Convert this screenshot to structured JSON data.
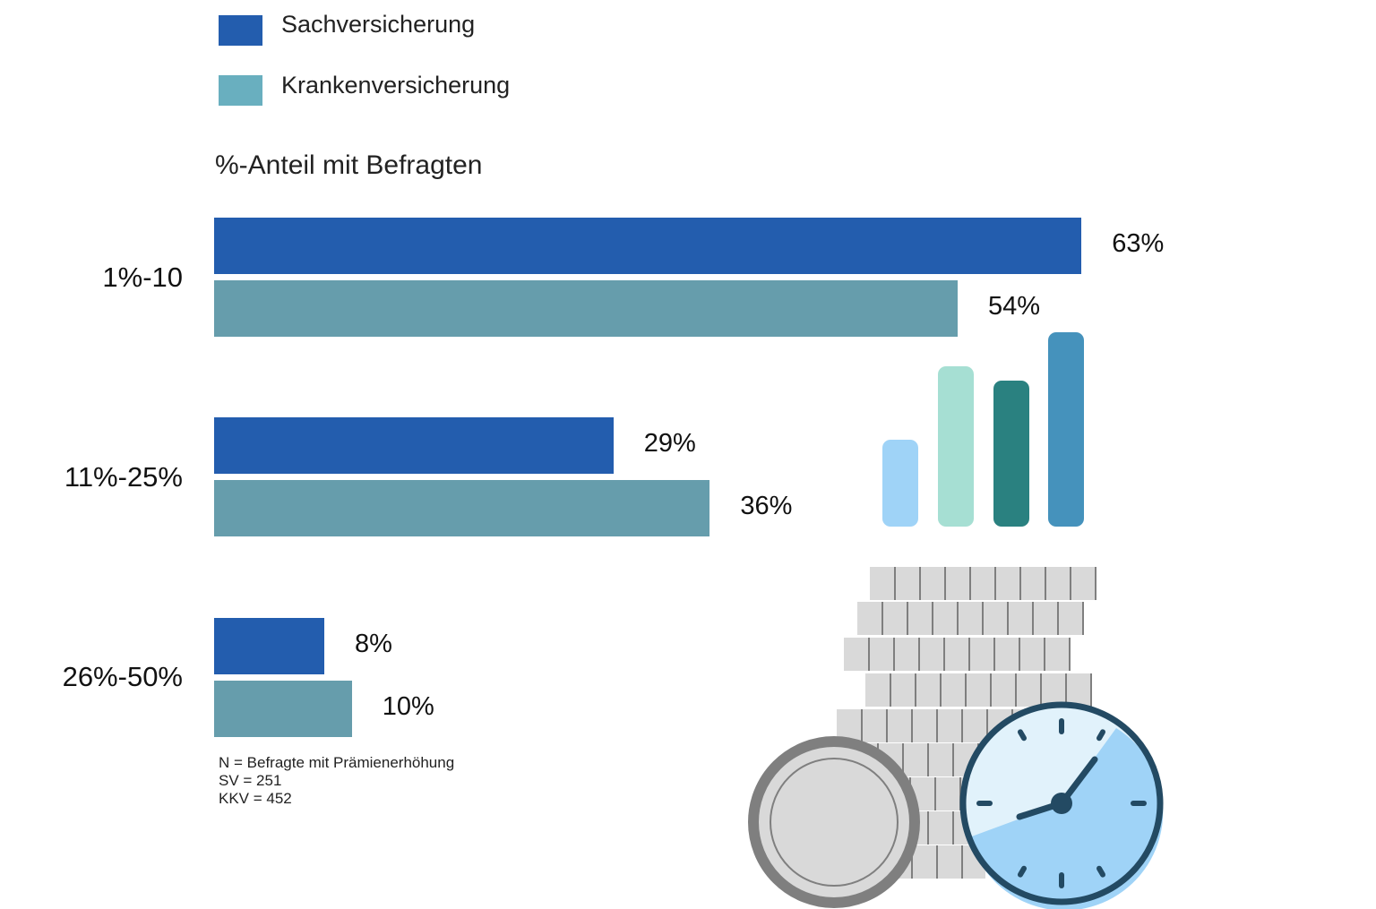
{
  "colors": {
    "sach": "#235DAE",
    "kranken": "#669DAC",
    "legend_kranken": "#69AFBF"
  },
  "legend": {
    "sach_label": "Sachversicherung",
    "kranken_label": "Krankenversicherung"
  },
  "subtitle": "%-Anteil mit Befragten",
  "chart_data": {
    "type": "bar",
    "orientation": "horizontal",
    "categories": [
      "1%-10",
      "11%-25%",
      "26%-50%"
    ],
    "series": [
      {
        "name": "Sachversicherung",
        "values": [
          63,
          29,
          8
        ],
        "labels": [
          "63%",
          "29%",
          "8%"
        ]
      },
      {
        "name": "Krankenversicherung",
        "values": [
          54,
          36,
          10
        ],
        "labels": [
          "54%",
          "36%",
          "10%"
        ]
      }
    ],
    "xlim": [
      0,
      100
    ],
    "grid": false,
    "legend_position": "top-left"
  },
  "note": {
    "line1": "N = Befragte mit Prämienerhöhung",
    "line2": "SV = 251",
    "line3": "KKV = 452"
  },
  "decoration": {
    "mini_bar_icon": "bar-chart-icon",
    "coins_icon": "coin-stack-icon",
    "clock_icon": "clock-icon"
  }
}
